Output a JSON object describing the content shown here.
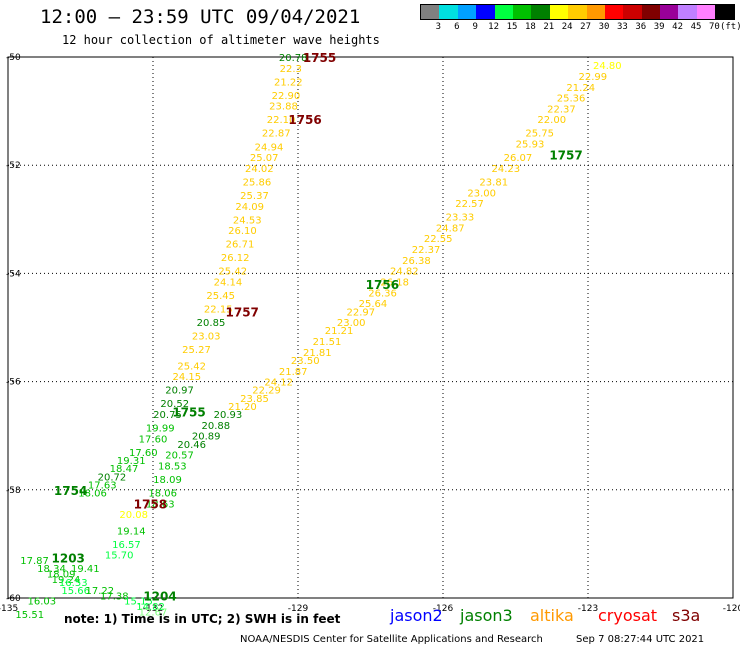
{
  "title": "12:00 — 23:59 UTC 09/04/2021",
  "subtitle": "12 hour collection of altimeter wave heights",
  "legend": {
    "unit": "(ft)",
    "bins": [
      {
        "label": "3",
        "color": "#808080"
      },
      {
        "label": "6",
        "color": "#00e0e0"
      },
      {
        "label": "9",
        "color": "#00a0ff"
      },
      {
        "label": "12",
        "color": "#0000ff"
      },
      {
        "label": "15",
        "color": "#00ff40"
      },
      {
        "label": "18",
        "color": "#00c000"
      },
      {
        "label": "21",
        "color": "#008000"
      },
      {
        "label": "24",
        "color": "#ffff00"
      },
      {
        "label": "27",
        "color": "#ffcc00"
      },
      {
        "label": "30",
        "color": "#ff9900"
      },
      {
        "label": "33",
        "color": "#ff0000"
      },
      {
        "label": "36",
        "color": "#cc0000"
      },
      {
        "label": "39",
        "color": "#800000"
      },
      {
        "label": "42",
        "color": "#990099"
      },
      {
        "label": "45",
        "color": "#c080ff"
      },
      {
        "label": "70",
        "color": "#ff80ff"
      },
      {
        "label": "",
        "color": "#000000"
      }
    ]
  },
  "axes": {
    "y_ticks": [
      "-50",
      "-52",
      "-54",
      "-56",
      "-58",
      "-60"
    ],
    "x_ticks": [
      "-135",
      "-132",
      "-129",
      "-126",
      "-123",
      "-120"
    ]
  },
  "note": "note: 1) Time is in UTC; 2) SWH is in feet",
  "satellites": [
    {
      "name": "jason2",
      "color": "#0000ff"
    },
    {
      "name": "jason3",
      "color": "#008000"
    },
    {
      "name": "altika",
      "color": "#ff9900"
    },
    {
      "name": "cryosat",
      "color": "#ff0000"
    },
    {
      "name": "s3a",
      "color": "#800000"
    }
  ],
  "footer": {
    "agency": "NOAA/NESDIS Center for Satellite Applications and Research",
    "timestamp": "Sep  7 08:27:44 UTC 2021"
  },
  "map_data": {
    "lon_range": [
      -135,
      -120
    ],
    "lat_range": [
      -60,
      -50
    ],
    "time_marks": [
      {
        "text": "1755",
        "lon": -128.9,
        "lat": -50.0,
        "color": "#800000"
      },
      {
        "text": "1756",
        "lon": -129.2,
        "lat": -51.15,
        "color": "#800000"
      },
      {
        "text": "1757",
        "lon": -130.5,
        "lat": -54.7,
        "color": "#800000"
      },
      {
        "text": "1757",
        "lon": -123.8,
        "lat": -51.8,
        "color": "#008000"
      },
      {
        "text": "1756",
        "lon": -127.6,
        "lat": -54.2,
        "color": "#008000"
      },
      {
        "text": "1755",
        "lon": -131.6,
        "lat": -56.55,
        "color": "#008000"
      },
      {
        "text": "1754",
        "lon": -134.05,
        "lat": -58.0,
        "color": "#008000"
      },
      {
        "text": "1758",
        "lon": -132.4,
        "lat": -58.25,
        "color": "#800000"
      },
      {
        "text": "1203",
        "lon": -134.1,
        "lat": -59.25,
        "color": "#008000"
      },
      {
        "text": "1204",
        "lon": -132.2,
        "lat": -59.95,
        "color": "#008000"
      }
    ],
    "tracks": [
      {
        "name": "altika-track",
        "points": [
          {
            "lon": -129.1,
            "lat": -50.0,
            "v": "20.78",
            "c": "#008000"
          },
          {
            "lon": -129.15,
            "lat": -50.2,
            "v": "22.3",
            "c": "#ffcc00"
          },
          {
            "lon": -129.2,
            "lat": -50.45,
            "v": "21.22",
            "c": "#ffcc00"
          },
          {
            "lon": -129.25,
            "lat": -50.7,
            "v": "22.90",
            "c": "#ffcc00"
          },
          {
            "lon": -129.3,
            "lat": -50.9,
            "v": "23.88",
            "c": "#ffcc00"
          },
          {
            "lon": -129.35,
            "lat": -51.15,
            "v": "22.10",
            "c": "#ffcc00"
          },
          {
            "lon": -129.45,
            "lat": -51.4,
            "v": "22.87",
            "c": "#ffcc00"
          },
          {
            "lon": -129.6,
            "lat": -51.65,
            "v": "24.94",
            "c": "#ffcc00"
          },
          {
            "lon": -129.7,
            "lat": -51.85,
            "v": "25.07",
            "c": "#ffcc00"
          },
          {
            "lon": -129.8,
            "lat": -52.05,
            "v": "24.02",
            "c": "#ffcc00"
          },
          {
            "lon": -129.85,
            "lat": -52.3,
            "v": "25.86",
            "c": "#ffcc00"
          },
          {
            "lon": -129.9,
            "lat": -52.55,
            "v": "25.37",
            "c": "#ffcc00"
          },
          {
            "lon": -130.0,
            "lat": -52.75,
            "v": "24.09",
            "c": "#ffcc00"
          },
          {
            "lon": -130.05,
            "lat": -53.0,
            "v": "24.53",
            "c": "#ffcc00"
          },
          {
            "lon": -130.15,
            "lat": -53.2,
            "v": "26.10",
            "c": "#ffcc00"
          },
          {
            "lon": -130.2,
            "lat": -53.45,
            "v": "26.71",
            "c": "#ffcc00"
          },
          {
            "lon": -130.3,
            "lat": -53.7,
            "v": "26.12",
            "c": "#ffcc00"
          },
          {
            "lon": -130.35,
            "lat": -53.95,
            "v": "25.42",
            "c": "#ffcc00"
          },
          {
            "lon": -130.45,
            "lat": -54.15,
            "v": "24.14",
            "c": "#ffcc00"
          },
          {
            "lon": -130.6,
            "lat": -54.4,
            "v": "25.45",
            "c": "#ffcc00"
          },
          {
            "lon": -130.65,
            "lat": -54.65,
            "v": "22.15",
            "c": "#ffcc00"
          },
          {
            "lon": -130.8,
            "lat": -54.9,
            "v": "20.85",
            "c": "#008000"
          },
          {
            "lon": -130.9,
            "lat": -55.15,
            "v": "23.03",
            "c": "#ffcc00"
          },
          {
            "lon": -131.1,
            "lat": -55.4,
            "v": "25.27",
            "c": "#ffcc00"
          },
          {
            "lon": -131.2,
            "lat": -55.7,
            "v": "25.42",
            "c": "#ffcc00"
          },
          {
            "lon": -131.3,
            "lat": -55.9,
            "v": "24.15",
            "c": "#ffcc00"
          },
          {
            "lon": -131.45,
            "lat": -56.15,
            "v": "20.97",
            "c": "#008000"
          },
          {
            "lon": -131.55,
            "lat": -56.4,
            "v": "20.52",
            "c": "#008000"
          },
          {
            "lon": -131.7,
            "lat": -56.6,
            "v": "20.75",
            "c": "#008000"
          },
          {
            "lon": -131.85,
            "lat": -56.85,
            "v": "19.99",
            "c": "#00c000"
          },
          {
            "lon": -132.0,
            "lat": -57.05,
            "v": "17.60",
            "c": "#00c000"
          },
          {
            "lon": -132.2,
            "lat": -57.3,
            "v": "17.60",
            "c": "#00c000"
          },
          {
            "lon": -132.45,
            "lat": -57.45,
            "v": "19.31",
            "c": "#00c000"
          },
          {
            "lon": -132.6,
            "lat": -57.6,
            "v": "18.47",
            "c": "#00c000"
          },
          {
            "lon": -132.85,
            "lat": -57.75,
            "v": "20.72",
            "c": "#008000"
          },
          {
            "lon": -133.05,
            "lat": -57.9,
            "v": "17.63",
            "c": "#00c000"
          },
          {
            "lon": -133.25,
            "lat": -58.05,
            "v": "18.06",
            "c": "#00c000"
          }
        ]
      },
      {
        "name": "jason3-track",
        "points": [
          {
            "lon": -122.6,
            "lat": -50.15,
            "v": "24.80",
            "c": "#ffff00"
          },
          {
            "lon": -122.9,
            "lat": -50.35,
            "v": "22.99",
            "c": "#ffcc00"
          },
          {
            "lon": -123.15,
            "lat": -50.55,
            "v": "21.24",
            "c": "#ffcc00"
          },
          {
            "lon": -123.35,
            "lat": -50.75,
            "v": "25.36",
            "c": "#ffcc00"
          },
          {
            "lon": -123.55,
            "lat": -50.95,
            "v": "22.37",
            "c": "#ffcc00"
          },
          {
            "lon": -123.75,
            "lat": -51.15,
            "v": "22.00",
            "c": "#ffcc00"
          },
          {
            "lon": -124.0,
            "lat": -51.4,
            "v": "25.75",
            "c": "#ffcc00"
          },
          {
            "lon": -124.2,
            "lat": -51.6,
            "v": "25.93",
            "c": "#ffcc00"
          },
          {
            "lon": -124.45,
            "lat": -51.85,
            "v": "26.07",
            "c": "#ffcc00"
          },
          {
            "lon": -124.7,
            "lat": -52.05,
            "v": "24.23",
            "c": "#ffcc00"
          },
          {
            "lon": -124.95,
            "lat": -52.3,
            "v": "23.81",
            "c": "#ffcc00"
          },
          {
            "lon": -125.2,
            "lat": -52.5,
            "v": "23.00",
            "c": "#ffcc00"
          },
          {
            "lon": -125.45,
            "lat": -52.7,
            "v": "22.57",
            "c": "#ffcc00"
          },
          {
            "lon": -125.65,
            "lat": -52.95,
            "v": "23.33",
            "c": "#ffcc00"
          },
          {
            "lon": -125.85,
            "lat": -53.15,
            "v": "24.87",
            "c": "#ffcc00"
          },
          {
            "lon": -126.1,
            "lat": -53.35,
            "v": "22.55",
            "c": "#ffcc00"
          },
          {
            "lon": -126.35,
            "lat": -53.55,
            "v": "22.37",
            "c": "#ffcc00"
          },
          {
            "lon": -126.55,
            "lat": -53.75,
            "v": "26.38",
            "c": "#ffcc00"
          },
          {
            "lon": -126.8,
            "lat": -53.95,
            "v": "24.82",
            "c": "#ffcc00"
          },
          {
            "lon": -127.0,
            "lat": -54.15,
            "v": "26.18",
            "c": "#ffcc00"
          },
          {
            "lon": -127.25,
            "lat": -54.35,
            "v": "26.36",
            "c": "#ffcc00"
          },
          {
            "lon": -127.45,
            "lat": -54.55,
            "v": "25.64",
            "c": "#ffcc00"
          },
          {
            "lon": -127.7,
            "lat": -54.7,
            "v": "22.97",
            "c": "#ffcc00"
          },
          {
            "lon": -127.9,
            "lat": -54.9,
            "v": "23.00",
            "c": "#ffcc00"
          },
          {
            "lon": -128.15,
            "lat": -55.05,
            "v": "21.21",
            "c": "#ffcc00"
          },
          {
            "lon": -128.4,
            "lat": -55.25,
            "v": "21.51",
            "c": "#ffcc00"
          },
          {
            "lon": -128.6,
            "lat": -55.45,
            "v": "21.81",
            "c": "#ffcc00"
          },
          {
            "lon": -128.85,
            "lat": -55.6,
            "v": "23.50",
            "c": "#ffcc00"
          },
          {
            "lon": -129.1,
            "lat": -55.8,
            "v": "21.87",
            "c": "#ffcc00"
          },
          {
            "lon": -129.4,
            "lat": -56.0,
            "v": "24.12",
            "c": "#ffcc00"
          },
          {
            "lon": -129.65,
            "lat": -56.15,
            "v": "22.29",
            "c": "#ffcc00"
          },
          {
            "lon": -129.9,
            "lat": -56.3,
            "v": "23.85",
            "c": "#ffcc00"
          },
          {
            "lon": -130.15,
            "lat": -56.45,
            "v": "21.20",
            "c": "#ffcc00"
          },
          {
            "lon": -130.45,
            "lat": -56.6,
            "v": "20.93",
            "c": "#008000"
          },
          {
            "lon": -130.7,
            "lat": -56.8,
            "v": "20.88",
            "c": "#008000"
          },
          {
            "lon": -130.9,
            "lat": -57.0,
            "v": "20.89",
            "c": "#008000"
          },
          {
            "lon": -131.2,
            "lat": -57.15,
            "v": "20.46",
            "c": "#008000"
          },
          {
            "lon": -131.45,
            "lat": -57.35,
            "v": "20.57",
            "c": "#00c000"
          },
          {
            "lon": -131.6,
            "lat": -57.55,
            "v": "18.53",
            "c": "#00c000"
          },
          {
            "lon": -131.7,
            "lat": -57.8,
            "v": "18.09",
            "c": "#00c000"
          },
          {
            "lon": -131.8,
            "lat": -58.05,
            "v": "18.06",
            "c": "#00c000"
          },
          {
            "lon": -131.85,
            "lat": -58.25,
            "v": "18.63",
            "c": "#00c000"
          }
        ]
      },
      {
        "name": "lower-track",
        "points": [
          {
            "lon": -132.4,
            "lat": -58.45,
            "v": "20.08",
            "c": "#ffff00"
          },
          {
            "lon": -132.45,
            "lat": -58.75,
            "v": "19.14",
            "c": "#00c000"
          },
          {
            "lon": -132.55,
            "lat": -59.0,
            "v": "16.57",
            "c": "#00ff40"
          },
          {
            "lon": -132.7,
            "lat": -59.2,
            "v": "15.70",
            "c": "#00ff40"
          },
          {
            "lon": -134.45,
            "lat": -59.3,
            "v": "17.87",
            "c": "#00c000"
          },
          {
            "lon": -134.1,
            "lat": -59.45,
            "v": "18.34",
            "c": "#00c000"
          },
          {
            "lon": -133.4,
            "lat": -59.45,
            "v": "19.41",
            "c": "#00c000"
          },
          {
            "lon": -133.9,
            "lat": -59.55,
            "v": "18.09",
            "c": "#00c000"
          },
          {
            "lon": -133.8,
            "lat": -59.65,
            "v": "19.24",
            "c": "#00c000"
          },
          {
            "lon": -133.65,
            "lat": -59.7,
            "v": "16.53",
            "c": "#00ff40"
          },
          {
            "lon": -133.6,
            "lat": -59.85,
            "v": "15.66",
            "c": "#00ff40"
          },
          {
            "lon": -133.1,
            "lat": -59.85,
            "v": "17.22",
            "c": "#00c000"
          },
          {
            "lon": -132.8,
            "lat": -59.95,
            "v": "17.38",
            "c": "#00c000"
          },
          {
            "lon": -132.3,
            "lat": -60.05,
            "v": "15.15",
            "c": "#00ff40"
          },
          {
            "lon": -132.05,
            "lat": -60.15,
            "v": "14.82",
            "c": "#00ff40"
          },
          {
            "lon": -132.0,
            "lat": -60.25,
            "v": "12.67",
            "c": "#80ff80"
          },
          {
            "lon": -134.3,
            "lat": -60.05,
            "v": "16.03",
            "c": "#00c000"
          },
          {
            "lon": -134.55,
            "lat": -60.3,
            "v": "15.51",
            "c": "#00c000"
          }
        ]
      }
    ]
  }
}
